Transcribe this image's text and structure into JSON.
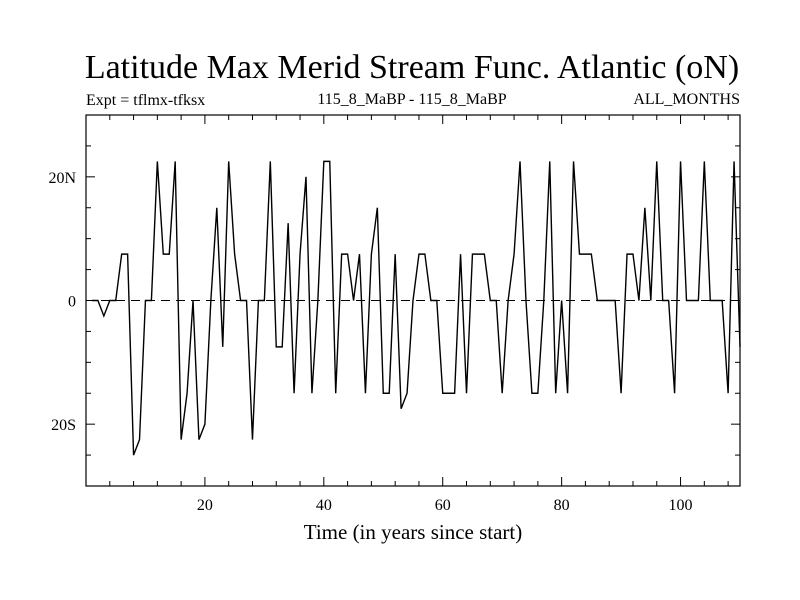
{
  "chart_data": {
    "type": "line",
    "title": "Latitude Max Merid Stream Func. Atlantic (oN)",
    "subtitle_left": "Expt = tflmx-tfksx",
    "subtitle_center": "115_8_MaBP - 115_8_MaBP",
    "subtitle_right": "ALL_MONTHS",
    "xlabel": "Time (in years since start)",
    "ylabel": "",
    "xlim": [
      0,
      110
    ],
    "ylim": [
      -30,
      30
    ],
    "zero_line": "dashed",
    "x_ticks": [
      {
        "value": 20,
        "label": "20"
      },
      {
        "value": 40,
        "label": "40"
      },
      {
        "value": 60,
        "label": "60"
      },
      {
        "value": 80,
        "label": "80"
      },
      {
        "value": 100,
        "label": "100"
      }
    ],
    "y_ticks": [
      {
        "value": 20,
        "label": "20N"
      },
      {
        "value": 0,
        "label": "0"
      },
      {
        "value": -20,
        "label": "20S"
      }
    ],
    "series": [
      {
        "name": "latitude max",
        "x": [
          1,
          2,
          3,
          4,
          5,
          6,
          7,
          8,
          9,
          10,
          11,
          12,
          13,
          14,
          15,
          16,
          17,
          18,
          19,
          20,
          21,
          22,
          23,
          24,
          25,
          26,
          27,
          28,
          29,
          30,
          31,
          32,
          33,
          34,
          35,
          36,
          37,
          38,
          39,
          40,
          41,
          42,
          43,
          44,
          45,
          46,
          47,
          48,
          49,
          50,
          51,
          52,
          53,
          54,
          55,
          56,
          57,
          58,
          59,
          60,
          61,
          62,
          63,
          64,
          65,
          66,
          67,
          68,
          69,
          70,
          71,
          72,
          73,
          74,
          75,
          76,
          77,
          78,
          79,
          80,
          81,
          82,
          83,
          84,
          85,
          86,
          87,
          88,
          89,
          90,
          91,
          92,
          93,
          94,
          95,
          96,
          97,
          98,
          99,
          100,
          101,
          102,
          103,
          104,
          105,
          106,
          107,
          108,
          109,
          110
        ],
        "values": [
          0,
          0,
          -2.5,
          0,
          0,
          7.5,
          7.5,
          -25,
          -22.5,
          0,
          0,
          22.5,
          7.5,
          7.5,
          22.5,
          -22.5,
          -15,
          0,
          -22.5,
          -20,
          0,
          15,
          -7.5,
          22.5,
          7.5,
          0,
          0,
          -22.5,
          0,
          0,
          22.5,
          -7.5,
          -7.5,
          12.5,
          -15,
          7.5,
          20,
          -15,
          0,
          22.5,
          22.5,
          -15,
          7.5,
          7.5,
          0,
          7.5,
          -15,
          7.5,
          15,
          -15,
          -15,
          7.5,
          -17.5,
          -15,
          0,
          7.5,
          7.5,
          0,
          0,
          -15,
          -15,
          -15,
          7.5,
          -15,
          7.5,
          7.5,
          7.5,
          0,
          0,
          -15,
          0,
          7.5,
          22.5,
          0,
          -15,
          -15,
          0,
          22.5,
          -15,
          0,
          -15,
          22.5,
          7.5,
          7.5,
          7.5,
          0,
          0,
          0,
          0,
          -15,
          7.5,
          7.5,
          0,
          15,
          0,
          22.5,
          0,
          0,
          -15,
          22.5,
          0,
          0,
          0,
          22.5,
          0,
          0,
          0,
          -15,
          22.5,
          -7.5
        ]
      }
    ]
  }
}
